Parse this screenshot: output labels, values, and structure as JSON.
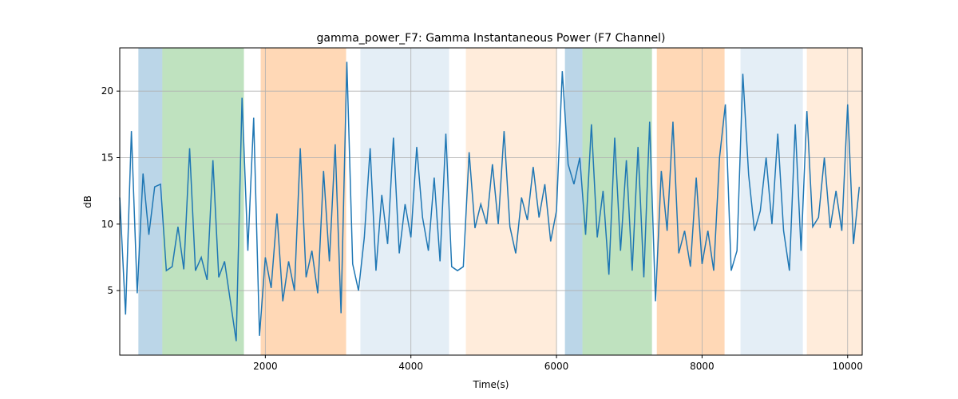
{
  "chart_data": {
    "type": "line",
    "title": "gamma_power_F7: Gamma Instantaneous Power (F7 Channel)",
    "xlabel": "Time(s)",
    "ylabel": "dB",
    "xlim": [
      0,
      10200
    ],
    "ylim": [
      0.15,
      23.25
    ],
    "xticks": [
      2000,
      4000,
      6000,
      8000,
      10000
    ],
    "yticks": [
      5,
      10,
      15,
      20
    ],
    "grid": true,
    "spans": [
      {
        "start": 256,
        "end": 585,
        "color": "#1f77b4",
        "alpha": 0.3
      },
      {
        "start": 585,
        "end": 1706,
        "color": "#2ca02c",
        "alpha": 0.3
      },
      {
        "start": 1936,
        "end": 3110,
        "color": "#ff7f0e",
        "alpha": 0.3
      },
      {
        "start": 3306,
        "end": 4524,
        "color": "#1f77b4",
        "alpha": 0.12
      },
      {
        "start": 4755,
        "end": 6006,
        "color": "#ff7f0e",
        "alpha": 0.15
      },
      {
        "start": 6116,
        "end": 6357,
        "color": "#1f77b4",
        "alpha": 0.3
      },
      {
        "start": 6357,
        "end": 7312,
        "color": "#2ca02c",
        "alpha": 0.3
      },
      {
        "start": 7378,
        "end": 8309,
        "color": "#ff7f0e",
        "alpha": 0.3
      },
      {
        "start": 8528,
        "end": 9384,
        "color": "#1f77b4",
        "alpha": 0.12
      },
      {
        "start": 9439,
        "end": 10200,
        "color": "#ff7f0e",
        "alpha": 0.15
      }
    ],
    "x": [
      0,
      80,
      160,
      240,
      320,
      400,
      480,
      560,
      640,
      720,
      800,
      880,
      960,
      1040,
      1120,
      1200,
      1280,
      1360,
      1440,
      1520,
      1600,
      1680,
      1760,
      1840,
      1920,
      2000,
      2080,
      2160,
      2240,
      2320,
      2400,
      2480,
      2560,
      2640,
      2720,
      2800,
      2880,
      2960,
      3040,
      3120,
      3200,
      3280,
      3360,
      3440,
      3520,
      3600,
      3680,
      3760,
      3840,
      3920,
      4000,
      4080,
      4160,
      4240,
      4320,
      4400,
      4480,
      4560,
      4640,
      4720,
      4800,
      4880,
      4960,
      5040,
      5120,
      5200,
      5280,
      5360,
      5440,
      5520,
      5600,
      5680,
      5760,
      5840,
      5920,
      6000,
      6080,
      6160,
      6240,
      6320,
      6400,
      6480,
      6560,
      6640,
      6720,
      6800,
      6880,
      6960,
      7040,
      7120,
      7200,
      7280,
      7360,
      7440,
      7520,
      7600,
      7680,
      7760,
      7840,
      7920,
      8000,
      8080,
      8160,
      8240,
      8320,
      8400,
      8480,
      8560,
      8640,
      8720,
      8800,
      8880,
      8960,
      9040,
      9120,
      9200,
      9280,
      9360,
      9440,
      9520,
      9600,
      9680,
      9760,
      9840,
      9920,
      10000,
      10080,
      10160
    ],
    "series": [
      {
        "name": "gamma_power_F7",
        "color": "#1f77b4",
        "values": [
          12,
          3.2,
          17,
          4.8,
          13.8,
          9.2,
          12.8,
          13,
          6.5,
          6.8,
          9.8,
          6.6,
          15.7,
          6.5,
          7.5,
          5.8,
          14.8,
          6,
          7.2,
          4.2,
          1.2,
          19.5,
          8,
          18,
          1.6,
          7.5,
          5.2,
          10.8,
          4.2,
          7.2,
          5,
          15.7,
          6,
          8,
          4.8,
          14,
          7.2,
          16,
          3.3,
          22.2,
          7,
          5,
          9,
          15.7,
          6.5,
          12.2,
          8.5,
          16.5,
          7.8,
          11.5,
          9,
          15.8,
          10.5,
          8,
          13.5,
          7.2,
          16.8,
          6.8,
          6.5,
          6.8,
          15.4,
          9.7,
          11.5,
          10,
          14.5,
          10,
          17,
          9.8,
          7.8,
          12,
          10.3,
          14.3,
          10.5,
          13,
          8.7,
          11,
          21.5,
          14.5,
          13,
          15,
          9.2,
          17.5,
          9,
          12.5,
          6.2,
          16.5,
          8,
          14.8,
          6.5,
          15.8,
          6,
          17.7,
          4.2,
          14,
          9.5,
          17.7,
          7.8,
          9.5,
          6.8,
          13.5,
          7,
          9.5,
          6.5,
          15,
          19,
          6.5,
          8,
          21.3,
          13.7,
          9.5,
          11,
          15,
          10,
          16.8,
          9.5,
          6.5,
          17.5,
          8,
          18.5,
          9.8,
          10.5,
          15,
          9.7,
          12.5,
          9.5,
          19,
          8.5,
          12.8
        ]
      }
    ]
  }
}
